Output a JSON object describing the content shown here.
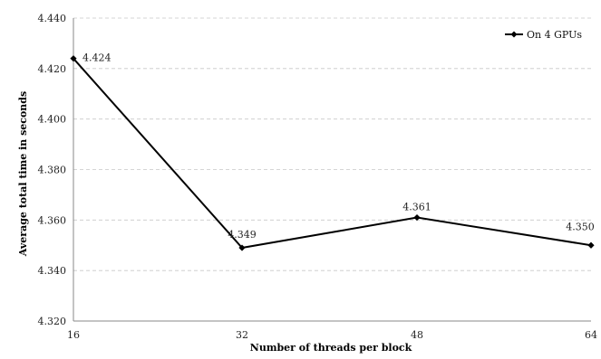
{
  "chart_data": {
    "type": "line",
    "categories": [
      "16",
      "32",
      "48",
      "64"
    ],
    "series": [
      {
        "name": "On 4 GPUs",
        "values": [
          4.424,
          4.349,
          4.361,
          4.35
        ]
      }
    ],
    "data_labels": [
      "4.424",
      "4.349",
      "4.361",
      "4.350"
    ],
    "xlabel": "Number of threads per block",
    "ylabel": "Average total time in seconds",
    "ylim": [
      4.32,
      4.44
    ],
    "y_ticks": [
      "4.320",
      "4.340",
      "4.360",
      "4.380",
      "4.400",
      "4.420",
      "4.440"
    ],
    "grid": true,
    "legend_position": "top-right",
    "line_color": "#000000",
    "marker": "diamond"
  }
}
